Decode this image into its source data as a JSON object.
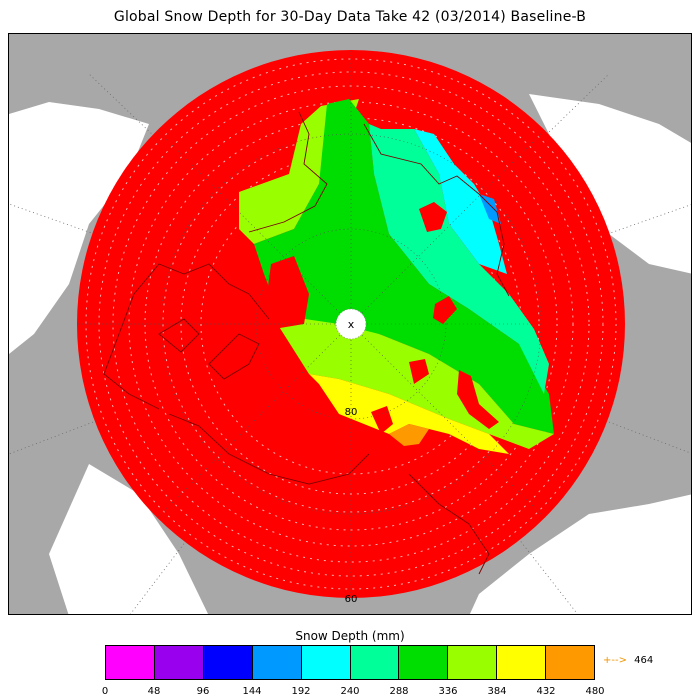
{
  "title": "Global Snow Depth for 30-Day Data Take 42 (03/2014) Baseline-B",
  "map": {
    "latitude_labels": [
      "80",
      "60"
    ],
    "pole_marker": "x",
    "colors": {
      "ocean": "#ffffff",
      "land_outside": "#a8a8a8",
      "no_data_red": "#ff0000",
      "graticule": "#505050"
    }
  },
  "scale": {
    "title": "Snow Depth (mm)",
    "ticks": [
      "0",
      "48",
      "96",
      "144",
      "192",
      "240",
      "288",
      "336",
      "384",
      "432",
      "480"
    ],
    "colors": [
      "#ff00ff",
      "#9900ee",
      "#0000ff",
      "#0099ff",
      "#00ffff",
      "#00ff99",
      "#00dd00",
      "#99ff00",
      "#ffff00",
      "#ff9900"
    ],
    "overflow_marker": "+-->",
    "overflow_value": "464",
    "overflow_color": "#f29400"
  }
}
